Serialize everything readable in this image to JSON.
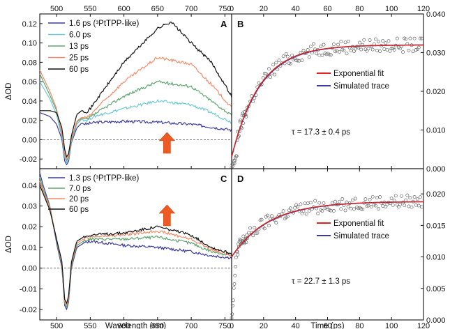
{
  "chart_data": [
    {
      "type": "line",
      "panel": "A",
      "ylabel": "ΔOD",
      "xlim": [
        475,
        760
      ],
      "ylim": [
        -0.03,
        0.13
      ],
      "xticks": [
        "500",
        "550",
        "600",
        "650",
        "700",
        "750"
      ],
      "xticks_top": [
        "500",
        "550",
        "600",
        "650",
        "700",
        "750"
      ],
      "yticks": [
        "-0.02",
        "0.00",
        "0.02",
        "0.04",
        "0.06",
        "0.08",
        "0.10",
        "0.12"
      ],
      "yticks_values": [
        -0.02,
        0,
        0.02,
        0.04,
        0.06,
        0.08,
        0.1,
        0.12
      ],
      "legend_position": "top-left",
      "annotation": "increasing (up arrow)",
      "series": [
        {
          "name": "1.6 ps (³PtTPP-like)",
          "color": "#3a3aa0",
          "x": [
            475,
            490,
            500,
            508,
            512,
            515,
            518,
            522,
            530,
            537,
            545,
            550,
            560,
            600,
            650,
            700,
            730,
            760
          ],
          "y": [
            0.028,
            0.024,
            0.016,
            0.0,
            -0.022,
            -0.026,
            -0.022,
            -0.003,
            0.012,
            0.017,
            0.016,
            0.017,
            0.018,
            0.019,
            0.018,
            0.016,
            0.013,
            0.01
          ]
        },
        {
          "name": "6.0 ps",
          "color": "#6fc8d8",
          "x": [
            475,
            490,
            500,
            508,
            512,
            515,
            518,
            522,
            530,
            537,
            545,
            550,
            560,
            600,
            650,
            700,
            730,
            760
          ],
          "y": [
            0.06,
            0.042,
            0.026,
            0.002,
            -0.018,
            -0.024,
            -0.02,
            -0.002,
            0.016,
            0.021,
            0.02,
            0.022,
            0.025,
            0.032,
            0.04,
            0.036,
            0.028,
            0.018
          ]
        },
        {
          "name": "13 ps",
          "color": "#5da56e",
          "x": [
            475,
            490,
            500,
            508,
            512,
            515,
            518,
            522,
            530,
            537,
            545,
            550,
            560,
            600,
            650,
            700,
            730,
            760
          ],
          "y": [
            0.068,
            0.046,
            0.03,
            0.005,
            -0.015,
            -0.022,
            -0.018,
            0.0,
            0.018,
            0.022,
            0.021,
            0.023,
            0.028,
            0.045,
            0.06,
            0.055,
            0.04,
            0.025
          ]
        },
        {
          "name": "25 ps",
          "color": "#f58a6a",
          "x": [
            475,
            490,
            500,
            508,
            512,
            515,
            518,
            522,
            530,
            537,
            545,
            550,
            560,
            600,
            650,
            700,
            730,
            760
          ],
          "y": [
            0.072,
            0.05,
            0.032,
            0.006,
            -0.014,
            -0.021,
            -0.016,
            0.001,
            0.019,
            0.023,
            0.023,
            0.025,
            0.033,
            0.06,
            0.085,
            0.078,
            0.057,
            0.033
          ]
        },
        {
          "name": "60 ps",
          "color": "#111111",
          "x": [
            475,
            490,
            500,
            508,
            512,
            515,
            518,
            522,
            530,
            537,
            545,
            550,
            560,
            600,
            650,
            670,
            700,
            730,
            760
          ],
          "y": [
            0.03,
            0.03,
            0.028,
            0.012,
            -0.01,
            -0.018,
            -0.014,
            0.004,
            0.026,
            0.03,
            0.029,
            0.032,
            0.042,
            0.08,
            0.115,
            0.122,
            0.1,
            0.08,
            0.045
          ]
        }
      ]
    },
    {
      "type": "scatter",
      "panel": "B",
      "xlim": [
        0,
        120
      ],
      "ylim": [
        0,
        0.04
      ],
      "xticks_top": [
        "0",
        "20",
        "40",
        "60",
        "80",
        "100",
        "120"
      ],
      "yticks_right": [
        "0.000",
        "0.010",
        "0.020",
        "0.030",
        "0.040"
      ],
      "yticks_right_values": [
        0,
        0.01,
        0.02,
        0.03,
        0.04
      ],
      "legend_position": "middle-right",
      "tau_text": "τ = 17.3 ± 0.4 ps",
      "model": {
        "baseline": 0.003,
        "amplitude": 0.029,
        "tau": 17.3
      },
      "series": [
        {
          "name": "Exponential fit",
          "color": "#e0231c"
        },
        {
          "name": "Simulated trace",
          "color": "#3a3aa0"
        }
      ]
    },
    {
      "type": "line",
      "panel": "C",
      "xlabel": "Wavelength (nm)",
      "ylabel": "ΔOD",
      "xlim": [
        475,
        760
      ],
      "ylim": [
        -0.025,
        0.048
      ],
      "xticks": [
        "500",
        "550",
        "600",
        "650",
        "700",
        "750"
      ],
      "yticks": [
        "-0.02",
        "-0.01",
        "0.00",
        "0.01",
        "0.02",
        "0.03",
        "0.04"
      ],
      "yticks_values": [
        -0.02,
        -0.01,
        0,
        0.01,
        0.02,
        0.03,
        0.04
      ],
      "legend_position": "top-left",
      "annotation": "increasing (up arrow)",
      "series": [
        {
          "name": "1.3 ps (³PtTPP-like)",
          "color": "#3a3aa0",
          "x": [
            475,
            480,
            490,
            500,
            508,
            512,
            515,
            518,
            522,
            530,
            540,
            550,
            600,
            650,
            700,
            730,
            760
          ],
          "y": [
            0.046,
            0.04,
            0.03,
            0.012,
            0.0,
            -0.018,
            -0.02,
            -0.016,
            0.0,
            0.01,
            0.012,
            0.013,
            0.011,
            0.01,
            0.008,
            0.006,
            0.005
          ]
        },
        {
          "name": "7.0 ps",
          "color": "#5da56e",
          "x": [
            475,
            480,
            490,
            500,
            508,
            512,
            515,
            518,
            522,
            530,
            540,
            550,
            600,
            650,
            700,
            730,
            760
          ],
          "y": [
            0.044,
            0.038,
            0.03,
            0.013,
            0.001,
            -0.017,
            -0.019,
            -0.015,
            0.001,
            0.011,
            0.013,
            0.014,
            0.014,
            0.015,
            0.012,
            0.008,
            0.006
          ]
        },
        {
          "name": "20 ps",
          "color": "#f58a6a",
          "x": [
            475,
            480,
            490,
            500,
            508,
            512,
            515,
            518,
            522,
            530,
            540,
            550,
            600,
            650,
            700,
            730,
            760
          ],
          "y": [
            0.042,
            0.037,
            0.029,
            0.014,
            0.002,
            -0.016,
            -0.018,
            -0.014,
            0.002,
            0.012,
            0.014,
            0.015,
            0.016,
            0.018,
            0.014,
            0.009,
            0.006
          ]
        },
        {
          "name": "60 ps",
          "color": "#111111",
          "x": [
            475,
            480,
            490,
            500,
            508,
            512,
            515,
            518,
            522,
            530,
            540,
            550,
            600,
            650,
            700,
            730,
            760
          ],
          "y": [
            0.04,
            0.036,
            0.028,
            0.014,
            0.003,
            -0.015,
            -0.017,
            -0.013,
            0.003,
            0.013,
            0.015,
            0.016,
            0.017,
            0.02,
            0.016,
            0.01,
            0.007
          ]
        }
      ]
    },
    {
      "type": "scatter",
      "panel": "D",
      "xlabel": "Time (ps)",
      "xlim": [
        0,
        120
      ],
      "ylim": [
        0,
        0.024
      ],
      "xticks": [
        "0",
        "20",
        "40",
        "60",
        "80",
        "100",
        "120"
      ],
      "yticks_right": [
        "0.000",
        "0.005",
        "0.010",
        "0.015",
        "0.020"
      ],
      "yticks_right_values": [
        0,
        0.005,
        0.01,
        0.015,
        0.02
      ],
      "legend_position": "middle-right",
      "tau_text": "τ = 22.7 ± 1.3 ps",
      "model": {
        "baseline": 0.01,
        "amplitude": 0.0088,
        "tau": 22.7
      },
      "series": [
        {
          "name": "Exponential fit",
          "color": "#e0231c"
        },
        {
          "name": "Simulated trace",
          "color": "#3a3aa0"
        }
      ]
    }
  ]
}
